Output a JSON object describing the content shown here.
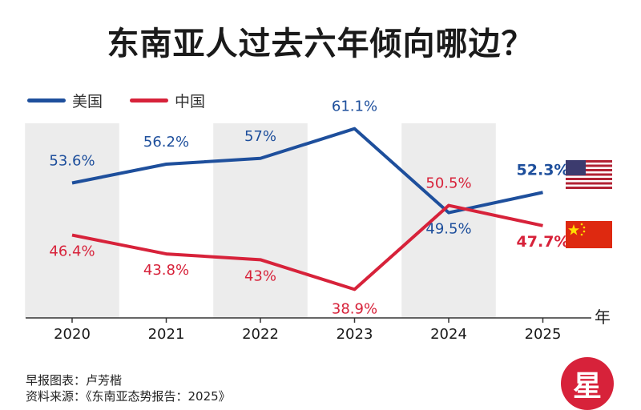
{
  "title": "东南亚人过去六年倾向哪边？",
  "legend": {
    "us_label": "美国",
    "cn_label": "中国"
  },
  "colors": {
    "us": "#1e4f9c",
    "cn": "#d7223a",
    "band": "#ececec"
  },
  "footer": {
    "line1": "早报图表：卢芳楷",
    "line2": "资料来源：《东南亚态势报告：2025》"
  },
  "logo_text": "星",
  "chart_data": {
    "type": "line",
    "x": [
      "2020",
      "2021",
      "2022",
      "2023",
      "2024",
      "2025"
    ],
    "x_unit": "年",
    "series": [
      {
        "name": "美国",
        "values": [
          53.6,
          56.2,
          57,
          61.1,
          49.5,
          52.3
        ],
        "labels": [
          "53.6%",
          "56.2%",
          "57%",
          "61.1%",
          "49.5%",
          "52.3%"
        ],
        "icon": "us-flag-icon"
      },
      {
        "name": "中国",
        "values": [
          46.4,
          43.8,
          43,
          38.9,
          50.5,
          47.7
        ],
        "labels": [
          "46.4%",
          "43.8%",
          "43%",
          "38.9%",
          "50.5%",
          "47.7%"
        ],
        "icon": "china-flag-icon"
      }
    ],
    "ylim": [
      30,
      70
    ],
    "grid": false
  }
}
